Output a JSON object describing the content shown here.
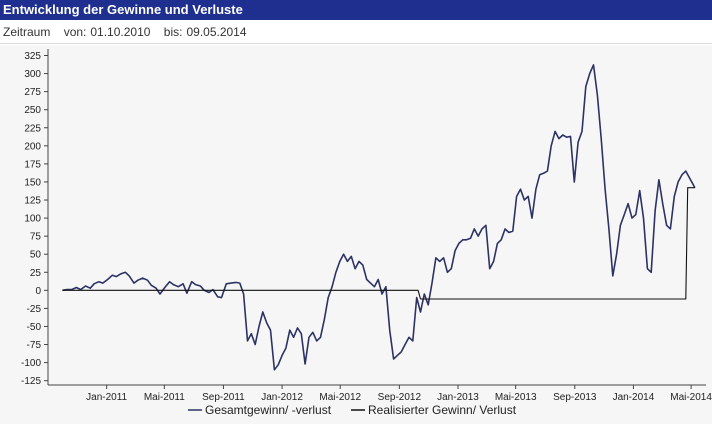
{
  "header": {
    "title": "Entwicklung der Gewinne und Verluste"
  },
  "filter": {
    "label": "Zeitraum",
    "from_label": "von:",
    "from_value": "01.10.2010",
    "to_label": "bis:",
    "to_value": "09.05.2014"
  },
  "colors": {
    "series1": "#2d3264",
    "series2": "#111111",
    "header_bg": "#1e2f8f"
  },
  "chart_data": {
    "type": "line",
    "title": "",
    "xlabel": "",
    "ylabel": "",
    "ylim": [
      -125,
      325
    ],
    "yticks": [
      -125,
      -100,
      -75,
      -50,
      -25,
      0,
      25,
      50,
      75,
      100,
      125,
      150,
      175,
      200,
      225,
      250,
      275,
      300,
      325
    ],
    "xlim": [
      "2010-10-01",
      "2014-05-09"
    ],
    "xticks": [
      {
        "label": "Jan-2011",
        "date": "2011-01-01"
      },
      {
        "label": "Mai-2011",
        "date": "2011-05-01"
      },
      {
        "label": "Sep-2011",
        "date": "2011-09-01"
      },
      {
        "label": "Jan-2012",
        "date": "2012-01-01"
      },
      {
        "label": "Mai-2012",
        "date": "2012-05-01"
      },
      {
        "label": "Sep-2012",
        "date": "2012-09-01"
      },
      {
        "label": "Jan-2013",
        "date": "2013-01-01"
      },
      {
        "label": "Mai-2013",
        "date": "2013-05-01"
      },
      {
        "label": "Sep-2013",
        "date": "2013-09-01"
      },
      {
        "label": "Jan-2014",
        "date": "2014-01-01"
      },
      {
        "label": "Mai-2014",
        "date": "2014-05-01"
      }
    ],
    "grid": false,
    "legend": "bottom",
    "series": [
      {
        "name": "Gesamtgewinn/ -verlust",
        "points": [
          [
            "2010-10-01",
            0
          ],
          [
            "2010-10-10",
            1
          ],
          [
            "2010-10-20",
            1
          ],
          [
            "2010-10-30",
            4
          ],
          [
            "2010-11-08",
            1
          ],
          [
            "2010-11-18",
            6
          ],
          [
            "2010-11-28",
            3
          ],
          [
            "2010-12-06",
            9
          ],
          [
            "2010-12-16",
            12
          ],
          [
            "2010-12-24",
            10
          ],
          [
            "2011-01-03",
            15
          ],
          [
            "2011-01-13",
            21
          ],
          [
            "2011-01-21",
            19
          ],
          [
            "2011-01-31",
            23
          ],
          [
            "2011-02-09",
            25
          ],
          [
            "2011-02-17",
            20
          ],
          [
            "2011-02-27",
            10
          ],
          [
            "2011-03-07",
            14
          ],
          [
            "2011-03-17",
            17
          ],
          [
            "2011-03-27",
            14
          ],
          [
            "2011-04-04",
            7
          ],
          [
            "2011-04-14",
            3
          ],
          [
            "2011-04-22",
            -5
          ],
          [
            "2011-05-02",
            4
          ],
          [
            "2011-05-12",
            12
          ],
          [
            "2011-05-20",
            8
          ],
          [
            "2011-05-30",
            5
          ],
          [
            "2011-06-09",
            9
          ],
          [
            "2011-06-17",
            -4
          ],
          [
            "2011-06-27",
            12
          ],
          [
            "2011-07-05",
            8
          ],
          [
            "2011-07-15",
            6
          ],
          [
            "2011-07-23",
            0
          ],
          [
            "2011-08-02",
            -3
          ],
          [
            "2011-08-10",
            1
          ],
          [
            "2011-08-20",
            -9
          ],
          [
            "2011-08-28",
            -10
          ],
          [
            "2011-09-07",
            9
          ],
          [
            "2011-09-17",
            10
          ],
          [
            "2011-09-27",
            11
          ],
          [
            "2011-10-05",
            10
          ],
          [
            "2011-10-13",
            -5
          ],
          [
            "2011-10-21",
            -70
          ],
          [
            "2011-10-29",
            -60
          ],
          [
            "2011-11-06",
            -75
          ],
          [
            "2011-11-14",
            -50
          ],
          [
            "2011-11-22",
            -30
          ],
          [
            "2011-11-30",
            -45
          ],
          [
            "2011-12-08",
            -55
          ],
          [
            "2011-12-16",
            -110
          ],
          [
            "2011-12-24",
            -103
          ],
          [
            "2012-01-01",
            -90
          ],
          [
            "2012-01-09",
            -80
          ],
          [
            "2012-01-17",
            -55
          ],
          [
            "2012-01-25",
            -65
          ],
          [
            "2012-02-02",
            -52
          ],
          [
            "2012-02-10",
            -60
          ],
          [
            "2012-02-18",
            -102
          ],
          [
            "2012-02-26",
            -65
          ],
          [
            "2012-03-05",
            -58
          ],
          [
            "2012-03-13",
            -70
          ],
          [
            "2012-03-21",
            -65
          ],
          [
            "2012-03-29",
            -40
          ],
          [
            "2012-04-06",
            -10
          ],
          [
            "2012-04-14",
            5
          ],
          [
            "2012-04-22",
            25
          ],
          [
            "2012-04-30",
            40
          ],
          [
            "2012-05-08",
            50
          ],
          [
            "2012-05-16",
            40
          ],
          [
            "2012-05-24",
            47
          ],
          [
            "2012-06-01",
            30
          ],
          [
            "2012-06-09",
            40
          ],
          [
            "2012-06-17",
            35
          ],
          [
            "2012-06-25",
            15
          ],
          [
            "2012-07-03",
            10
          ],
          [
            "2012-07-11",
            5
          ],
          [
            "2012-07-19",
            15
          ],
          [
            "2012-07-27",
            -5
          ],
          [
            "2012-08-04",
            5
          ],
          [
            "2012-08-12",
            -55
          ],
          [
            "2012-08-20",
            -95
          ],
          [
            "2012-08-28",
            -90
          ],
          [
            "2012-09-05",
            -85
          ],
          [
            "2012-09-13",
            -75
          ],
          [
            "2012-09-21",
            -65
          ],
          [
            "2012-09-29",
            -70
          ],
          [
            "2012-10-07",
            -10
          ],
          [
            "2012-10-15",
            -30
          ],
          [
            "2012-10-23",
            -5
          ],
          [
            "2012-10-31",
            -20
          ],
          [
            "2012-11-08",
            10
          ],
          [
            "2012-11-16",
            45
          ],
          [
            "2012-11-24",
            40
          ],
          [
            "2012-12-02",
            45
          ],
          [
            "2012-12-10",
            25
          ],
          [
            "2012-12-18",
            30
          ],
          [
            "2012-12-26",
            55
          ],
          [
            "2013-01-03",
            65
          ],
          [
            "2013-01-11",
            70
          ],
          [
            "2013-01-19",
            70
          ],
          [
            "2013-01-27",
            72
          ],
          [
            "2013-02-04",
            85
          ],
          [
            "2013-02-12",
            75
          ],
          [
            "2013-02-20",
            85
          ],
          [
            "2013-02-28",
            90
          ],
          [
            "2013-03-08",
            30
          ],
          [
            "2013-03-16",
            40
          ],
          [
            "2013-03-24",
            65
          ],
          [
            "2013-04-01",
            70
          ],
          [
            "2013-04-09",
            85
          ],
          [
            "2013-04-17",
            80
          ],
          [
            "2013-04-25",
            82
          ],
          [
            "2013-05-03",
            130
          ],
          [
            "2013-05-11",
            140
          ],
          [
            "2013-05-19",
            125
          ],
          [
            "2013-05-27",
            130
          ],
          [
            "2013-06-04",
            100
          ],
          [
            "2013-06-12",
            140
          ],
          [
            "2013-06-20",
            160
          ],
          [
            "2013-06-28",
            162
          ],
          [
            "2013-07-06",
            165
          ],
          [
            "2013-07-14",
            200
          ],
          [
            "2013-07-22",
            220
          ],
          [
            "2013-07-30",
            210
          ],
          [
            "2013-08-07",
            215
          ],
          [
            "2013-08-15",
            212
          ],
          [
            "2013-08-23",
            213
          ],
          [
            "2013-08-31",
            150
          ],
          [
            "2013-09-08",
            205
          ],
          [
            "2013-09-16",
            220
          ],
          [
            "2013-09-24",
            282
          ],
          [
            "2013-10-02",
            300
          ],
          [
            "2013-10-10",
            312
          ],
          [
            "2013-10-18",
            270
          ],
          [
            "2013-10-26",
            210
          ],
          [
            "2013-11-03",
            140
          ],
          [
            "2013-11-11",
            85
          ],
          [
            "2013-11-19",
            20
          ],
          [
            "2013-11-27",
            50
          ],
          [
            "2013-12-05",
            90
          ],
          [
            "2013-12-13",
            105
          ],
          [
            "2013-12-21",
            120
          ],
          [
            "2013-12-29",
            100
          ],
          [
            "2014-01-06",
            105
          ],
          [
            "2014-01-14",
            138
          ],
          [
            "2014-01-22",
            100
          ],
          [
            "2014-01-30",
            30
          ],
          [
            "2014-02-07",
            25
          ],
          [
            "2014-02-15",
            110
          ],
          [
            "2014-02-23",
            153
          ],
          [
            "2014-03-03",
            120
          ],
          [
            "2014-03-11",
            90
          ],
          [
            "2014-03-19",
            85
          ],
          [
            "2014-03-27",
            130
          ],
          [
            "2014-04-04",
            150
          ],
          [
            "2014-04-12",
            160
          ],
          [
            "2014-04-20",
            165
          ],
          [
            "2014-04-28",
            155
          ],
          [
            "2014-05-09",
            142
          ]
        ]
      },
      {
        "name": "Realisierter Gewinn/ Verlust",
        "points": [
          [
            "2010-10-01",
            0
          ],
          [
            "2012-10-10",
            0
          ],
          [
            "2012-10-15",
            -12
          ],
          [
            "2014-04-20",
            -12
          ],
          [
            "2014-04-24",
            142
          ],
          [
            "2014-05-09",
            142
          ]
        ]
      }
    ]
  }
}
